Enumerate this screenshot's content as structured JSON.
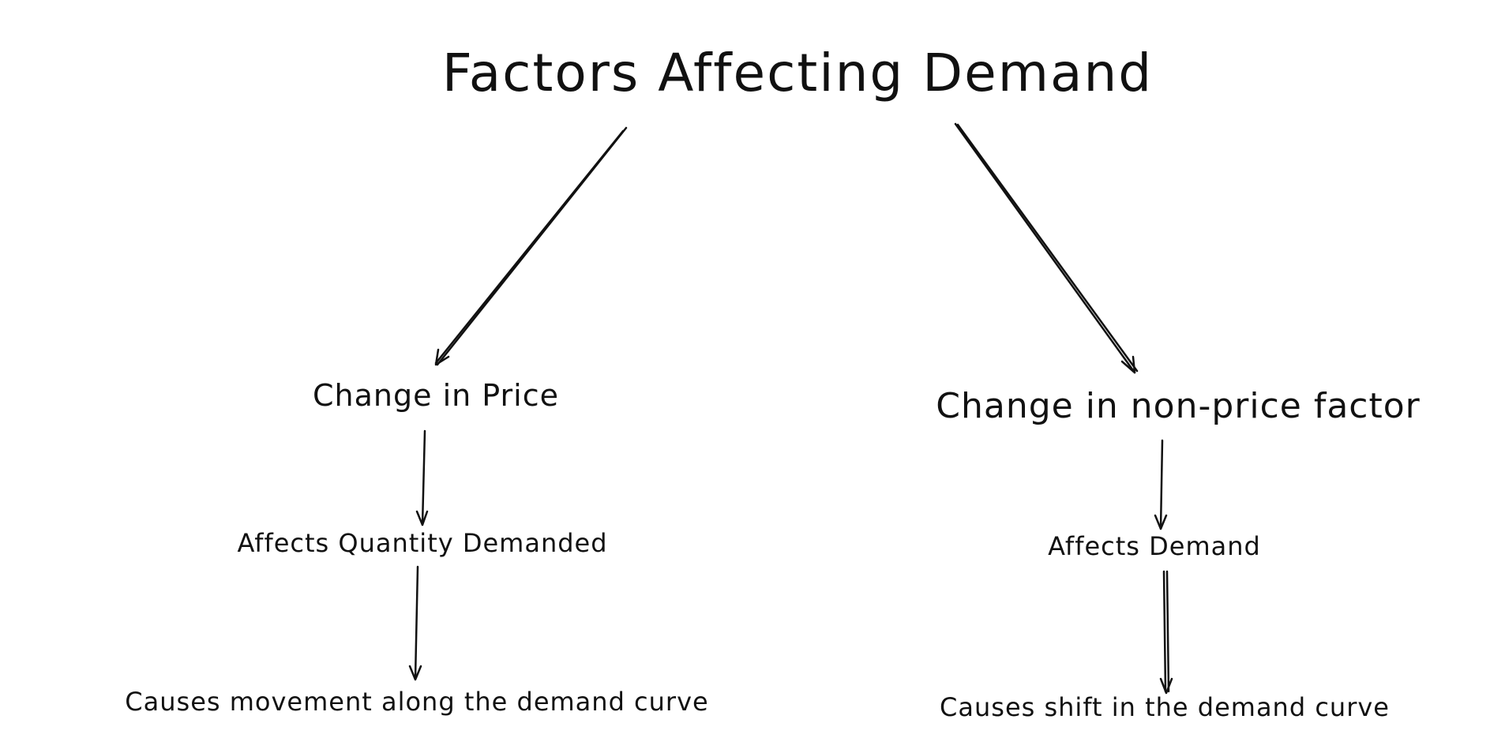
{
  "diagram": {
    "title": "Factors Affecting Demand",
    "left_branch": {
      "level1": "Change in Price",
      "level2": "Affects Quantity Demanded",
      "level3": "Causes movement along the demand curve"
    },
    "right_branch": {
      "level1": "Change in non-price factor",
      "level2": "Affects Demand",
      "level3": "Causes shift in the demand curve"
    },
    "stroke_color": "#111111",
    "background_color": "#ffffff"
  }
}
